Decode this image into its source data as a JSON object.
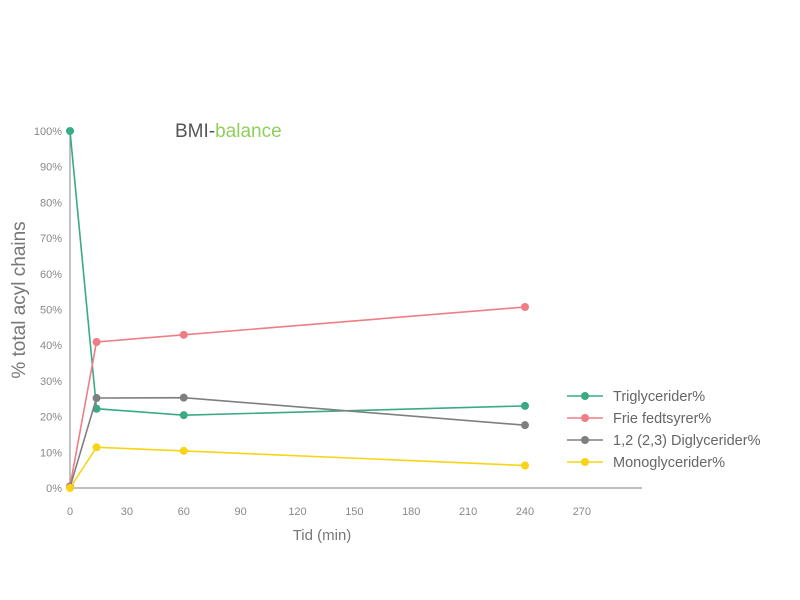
{
  "chart_data": {
    "type": "line",
    "title_parts": [
      {
        "text": "BMI-",
        "color": "#555555"
      },
      {
        "text": "balance",
        "color": "#8fcf5a"
      }
    ],
    "xlabel": "Tid (min)",
    "ylabel": "% total acyl chains",
    "xlim": [
      -2,
      300
    ],
    "ylim": [
      0,
      100
    ],
    "x_ticks": [
      0,
      30,
      60,
      90,
      120,
      150,
      180,
      210,
      240,
      270
    ],
    "y_ticks": [
      0,
      10,
      20,
      30,
      40,
      50,
      60,
      70,
      80,
      90,
      100
    ],
    "y_tick_suffix": "%",
    "x": [
      0,
      14,
      60,
      240
    ],
    "series": [
      {
        "name": "Triglycerider%",
        "color": "#3aaa86",
        "values": [
          100,
          22.2,
          20.4,
          23
        ]
      },
      {
        "name": "Frie fedtsyrer%",
        "color": "#ef7d85",
        "values": [
          0.5,
          40.9,
          42.9,
          50.7
        ]
      },
      {
        "name": "1,2 (2,3) Diglycerider%",
        "color": "#7f7f7f",
        "values": [
          0.2,
          25.2,
          25.3,
          17.6
        ]
      },
      {
        "name": "Monoglycerider%",
        "color": "#f7d416",
        "values": [
          0,
          11.4,
          10.4,
          6.3
        ]
      }
    ],
    "grid": false,
    "legend_position": "right"
  }
}
